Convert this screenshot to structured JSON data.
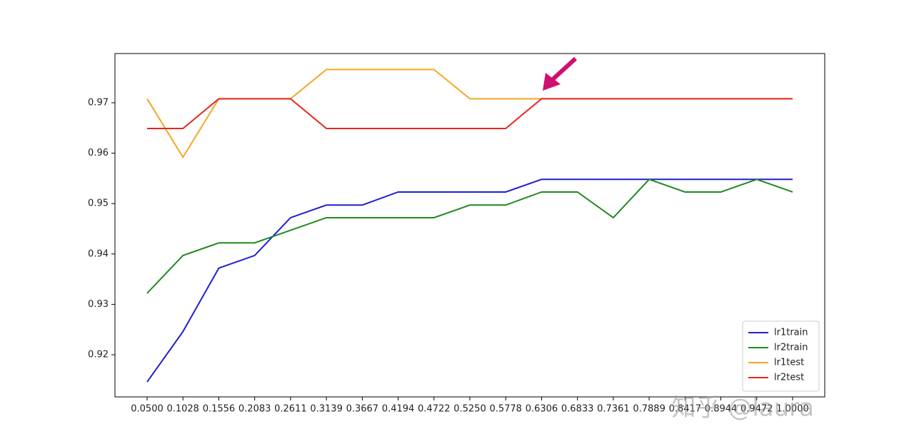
{
  "chart_data": {
    "type": "line",
    "categories": [
      "0.0500",
      "0.1028",
      "0.1556",
      "0.2083",
      "0.2611",
      "0.3139",
      "0.3667",
      "0.4194",
      "0.4722",
      "0.5250",
      "0.5778",
      "0.6306",
      "0.6833",
      "0.7361",
      "0.7889",
      "0.8417",
      "0.8944",
      "0.9472",
      "1.0000"
    ],
    "series": [
      {
        "name": "lr1train",
        "color": "#1f1fcf",
        "values": [
          0.9146,
          0.9246,
          0.9372,
          0.9397,
          0.9472,
          0.9497,
          0.9497,
          0.9523,
          0.9523,
          0.9523,
          0.9523,
          0.9548,
          0.9548,
          0.9548,
          0.9548,
          0.9548,
          0.9548,
          0.9548,
          0.9548
        ]
      },
      {
        "name": "lr2train",
        "color": "#1f8a1f",
        "values": [
          0.9322,
          0.9397,
          0.9422,
          0.9422,
          0.9447,
          0.9472,
          0.9472,
          0.9472,
          0.9472,
          0.9497,
          0.9497,
          0.9523,
          0.9523,
          0.9472,
          0.9548,
          0.9523,
          0.9523,
          0.9548,
          0.9523
        ]
      },
      {
        "name": "lr1test",
        "color": "#f5a623",
        "values": [
          0.9708,
          0.9592,
          0.9708,
          0.9708,
          0.9708,
          0.9766,
          0.9766,
          0.9766,
          0.9766,
          0.9708,
          0.9708,
          0.9708,
          0.9708,
          0.9708,
          0.9708,
          0.9708,
          0.9708,
          0.9708,
          0.9708
        ]
      },
      {
        "name": "lr2test",
        "color": "#e8251f",
        "values": [
          0.9649,
          0.9649,
          0.9708,
          0.9708,
          0.9708,
          0.9649,
          0.9649,
          0.9649,
          0.9649,
          0.9649,
          0.9649,
          0.9708,
          0.9708,
          0.9708,
          0.9708,
          0.9708,
          0.9708,
          0.9708,
          0.9708
        ]
      }
    ],
    "ylim": [
      0.91164,
      0.97977
    ],
    "yticks": [
      0.92,
      0.93,
      0.94,
      0.95,
      0.96,
      0.97
    ],
    "legend": "lower right",
    "watermark": "知乎 @laura"
  }
}
